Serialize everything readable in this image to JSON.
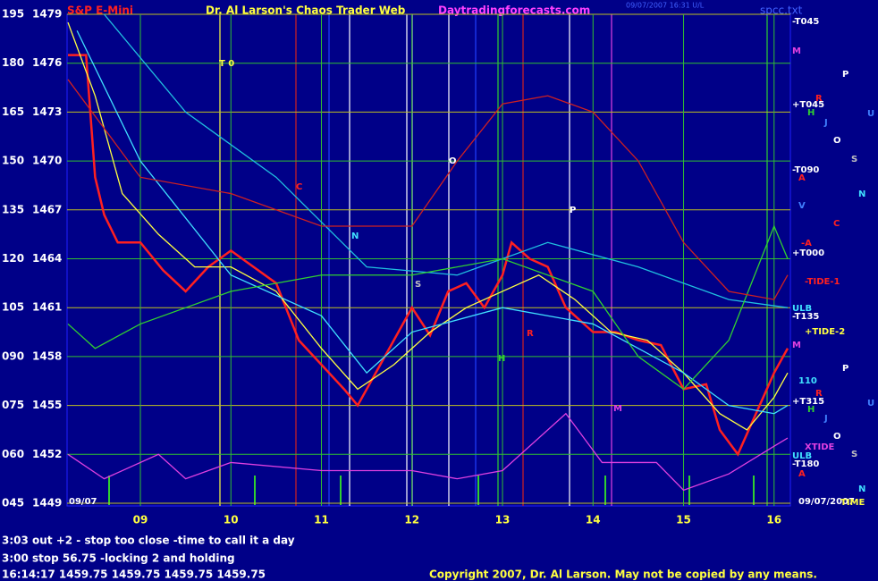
{
  "header": {
    "title": "S&P E-Mini",
    "subtitle": "Dr. Al Larson's Chaos Trader Web",
    "site": "Daytradingforecasts.com",
    "stamp": "09/07/2007 16:31 U/L",
    "file": "spcc.txt"
  },
  "chart_data": {
    "type": "line",
    "xlim": [
      8.19,
      16.18
    ],
    "xticks": [
      {
        "value": 9,
        "label": "09"
      },
      10,
      11,
      12,
      13,
      14,
      15,
      16
    ],
    "ylim": [
      1449,
      1479
    ],
    "yticks": [
      1449,
      1452,
      1455,
      1458,
      1461,
      1464,
      1467,
      1470,
      1473,
      1476,
      1479
    ],
    "y2lim": [
      45,
      195
    ],
    "y2ticks": [
      {
        "value": 45,
        "label": "045"
      },
      {
        "value": 60,
        "label": "060"
      },
      {
        "value": 75,
        "label": "075"
      },
      {
        "value": 90,
        "label": "090"
      },
      105,
      120,
      135,
      150,
      165,
      180,
      195
    ],
    "grid": true,
    "series": [
      {
        "color": "#ff2020",
        "x": [
          8.2,
          8.4,
          8.5,
          8.6,
          8.75,
          9.0,
          9.25,
          9.5,
          9.75,
          10.0,
          10.25,
          10.5,
          10.75,
          11.0,
          11.25,
          11.4,
          11.6,
          11.8,
          12.0,
          12.2,
          12.4,
          12.6,
          12.8,
          13.0,
          13.1,
          13.3,
          13.5,
          13.7,
          14.0,
          14.25,
          14.5,
          14.75,
          15.0,
          15.25,
          15.4,
          15.6,
          15.8,
          16.0,
          16.15
        ],
        "values": [
          1476.5,
          1476.5,
          1469,
          1466.7,
          1465,
          1465,
          1463.3,
          1462,
          1463.5,
          1464.5,
          1463.5,
          1462.5,
          1459,
          1457.5,
          1456,
          1455,
          1457,
          1459,
          1461,
          1459.3,
          1462,
          1462.5,
          1461,
          1463,
          1465,
          1464,
          1463.5,
          1461,
          1459.5,
          1459.5,
          1459,
          1458.7,
          1456,
          1456.3,
          1453.5,
          1452,
          1454.5,
          1457,
          1458.5
        ]
      },
      {
        "color": "#ffff40",
        "x": [
          8.2,
          8.5,
          8.8,
          9.2,
          9.6,
          10.0,
          10.5,
          11.0,
          11.4,
          11.8,
          12.2,
          12.6,
          13.0,
          13.4,
          13.8,
          14.2,
          14.6,
          15.0,
          15.4,
          15.7,
          16.0,
          16.15
        ],
        "values": [
          1478.5,
          1474,
          1468,
          1465.5,
          1463.5,
          1463.5,
          1462,
          1458.5,
          1456,
          1457.5,
          1459.5,
          1461,
          1462,
          1463,
          1461.5,
          1459.5,
          1459,
          1457,
          1454.5,
          1453.5,
          1455.5,
          1457
        ]
      },
      {
        "color": "#40e0ff",
        "x": [
          8.3,
          9.0,
          10.0,
          11.0,
          11.5,
          12.0,
          13.0,
          14.0,
          15.0,
          15.5,
          16.0,
          16.15
        ],
        "values": [
          1478,
          1470,
          1463,
          1460.5,
          1457,
          1459.5,
          1461,
          1460,
          1457,
          1455,
          1454.5,
          1455
        ]
      },
      {
        "color": "#20c0e0",
        "x": [
          8.6,
          9.5,
          10.5,
          11.5,
          12.5,
          13.5,
          14.5,
          15.5,
          16.15
        ],
        "values": [
          1479,
          1473,
          1469,
          1463.5,
          1463,
          1465,
          1463.5,
          1461.5,
          1461
        ]
      },
      {
        "color": "#30d030",
        "x": [
          8.2,
          8.5,
          9.0,
          10.0,
          11.0,
          12.0,
          13.0,
          14.0,
          14.5,
          15.0,
          15.5,
          16.0,
          16.15
        ],
        "values": [
          1460,
          1458.5,
          1460,
          1462,
          1463,
          1463,
          1464,
          1462,
          1458,
          1456,
          1459,
          1466,
          1464
        ]
      },
      {
        "color": "#d02020",
        "x": [
          8.2,
          9.0,
          10.0,
          11.0,
          12.0,
          12.5,
          13.0,
          13.5,
          14.0,
          14.5,
          15.0,
          15.5,
          16.0,
          16.15
        ],
        "values": [
          1475,
          1469,
          1468,
          1466,
          1466,
          1470,
          1473.5,
          1474,
          1473,
          1470,
          1465,
          1462,
          1461.5,
          1463
        ]
      },
      {
        "color": "#e040e0",
        "x": [
          8.2,
          8.6,
          9.2,
          9.5,
          10.0,
          11.0,
          12.0,
          12.5,
          13.0,
          13.7,
          14.1,
          14.7,
          15.0,
          15.5,
          16.0,
          16.15
        ],
        "values": [
          1452,
          1450.5,
          1452,
          1450.5,
          1451.5,
          1451,
          1451,
          1450.5,
          1451,
          1454.5,
          1451.5,
          1451.5,
          1449.8,
          1450.8,
          1452.5,
          1453
        ]
      }
    ],
    "annotations": [
      {
        "text": "T 0",
        "color": "#ffff40"
      },
      {
        "text": "C",
        "color": "#ff2020"
      },
      {
        "text": "N",
        "color": "#40e0ff"
      },
      {
        "text": "O",
        "color": "#ffffff"
      },
      {
        "text": "S",
        "color": "#c0c0c0"
      },
      {
        "text": "P",
        "color": "#ffffff"
      },
      {
        "text": "H",
        "color": "#30d030"
      },
      {
        "text": "R",
        "color": "#ff2020"
      },
      {
        "text": "M",
        "color": "#e040e0"
      },
      {
        "text": "09/07",
        "color": "#ffffff"
      },
      {
        "text": "-T045",
        "color": "#ffffff"
      },
      {
        "text": "M",
        "color": "#e040e0"
      },
      {
        "text": "P",
        "color": "#ffffff"
      },
      {
        "text": "R",
        "color": "#ff2020"
      },
      {
        "text": "+T045",
        "color": "#ffffff"
      },
      {
        "text": "H",
        "color": "#30d030"
      },
      {
        "text": "J",
        "color": "#4080ff"
      },
      {
        "text": "U",
        "color": "#4080ff"
      },
      {
        "text": "O",
        "color": "#ffffff"
      },
      {
        "text": "S",
        "color": "#c0c0c0"
      },
      {
        "text": "-T090",
        "color": "#ffffff"
      },
      {
        "text": "A",
        "color": "#ff2020"
      },
      {
        "text": "N",
        "color": "#40e0ff"
      },
      {
        "text": "V",
        "color": "#4080ff"
      },
      {
        "text": "C",
        "color": "#ff2020"
      },
      {
        "text": "-A",
        "color": "#ff2020"
      },
      {
        "text": "+T000",
        "color": "#ffffff"
      },
      {
        "text": "-TIDE-1",
        "color": "#ff2020"
      },
      {
        "text": "ULB",
        "color": "#40e0ff"
      },
      {
        "text": "-T135",
        "color": "#ffffff"
      },
      {
        "text": "+TIDE-2",
        "color": "#ffff40"
      },
      {
        "text": "M",
        "color": "#e040e0"
      },
      {
        "text": "P",
        "color": "#ffffff"
      },
      {
        "text": "110",
        "color": "#40e0ff"
      },
      {
        "text": "R",
        "color": "#ff2020"
      },
      {
        "text": "+T315",
        "color": "#ffffff"
      },
      {
        "text": "H",
        "color": "#30d030"
      },
      {
        "text": "J",
        "color": "#4080ff"
      },
      {
        "text": "U",
        "color": "#4080ff"
      },
      {
        "text": "O",
        "color": "#ffffff"
      },
      {
        "text": "XTIDE",
        "color": "#e040e0"
      },
      {
        "text": "S",
        "color": "#c0c0c0"
      },
      {
        "text": "ULB",
        "color": "#40e0ff"
      },
      {
        "text": "-T180",
        "color": "#ffffff"
      },
      {
        "text": "A",
        "color": "#ff2020"
      },
      {
        "text": "N",
        "color": "#40e0ff"
      },
      {
        "text": "09/07/2007",
        "color": "#ffffff"
      },
      {
        "text": "TIME",
        "color": "#ffff40"
      }
    ]
  },
  "footer": {
    "notes": [
      "3:03 out +2 - stop too close -time to call it a day",
      "3:00 stop 56.75 -locking 2 and holding",
      "16:14:17  1459.75 1459.75 1459.75 1459.75"
    ],
    "copyright": "Copyright 2007, Dr. Al Larson. May not be copied by any means."
  }
}
